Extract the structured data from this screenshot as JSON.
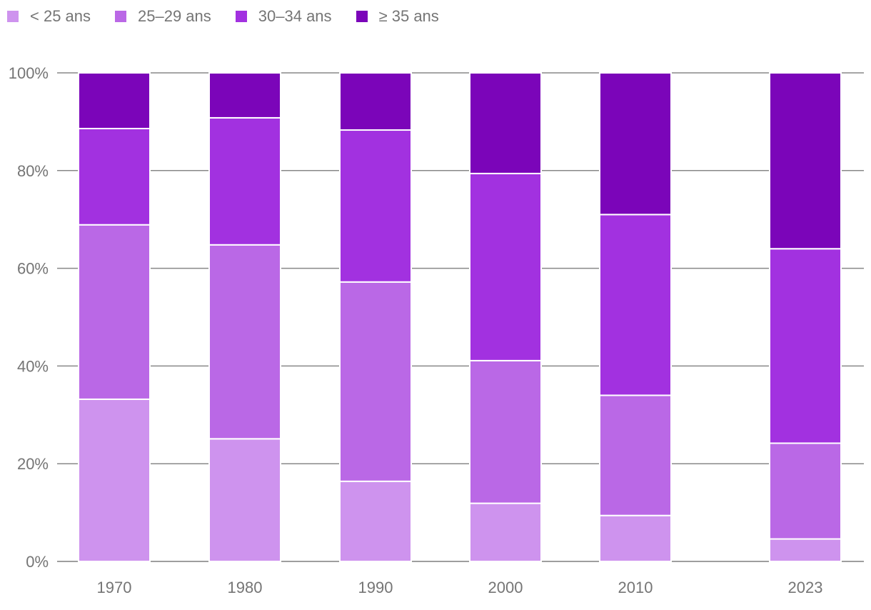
{
  "chart_data": {
    "type": "bar",
    "stacked": true,
    "categories": [
      "1970",
      "1980",
      "1990",
      "2000",
      "2010",
      "2023"
    ],
    "series": [
      {
        "name": "< 25 ans",
        "color": "#ce93ee",
        "values": [
          33.2,
          25.1,
          16.4,
          11.9,
          9.4,
          4.6
        ]
      },
      {
        "name": "25–29 ans",
        "color": "#ba68e6",
        "values": [
          35.7,
          39.7,
          40.8,
          29.2,
          24.6,
          19.6
        ]
      },
      {
        "name": "30–34 ans",
        "color": "#a231e0",
        "values": [
          19.7,
          26.0,
          31.1,
          38.3,
          37.0,
          39.8
        ]
      },
      {
        "name": "≥ 35 ans",
        "color": "#7b05b9",
        "values": [
          11.4,
          9.2,
          11.7,
          20.6,
          29.0,
          36.0
        ]
      }
    ],
    "ylim": [
      0,
      100
    ],
    "y_ticks": [
      "0%",
      "20%",
      "40%",
      "60%",
      "80%",
      "100%"
    ],
    "legend_position": "top-left",
    "grid": true
  }
}
